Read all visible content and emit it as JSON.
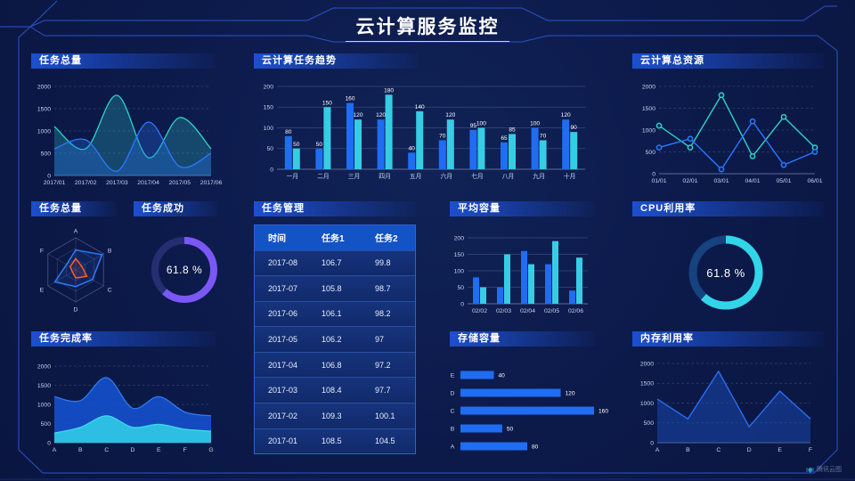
{
  "title": "云计算服务监控",
  "watermark": "腾讯云图",
  "colors": {
    "background": "#0c1a4a",
    "frame_line": "#2c52c9",
    "header_gradient": "#1d4fd0",
    "series_blue": "#1f6df2",
    "series_cyan": "#35cde4",
    "series_teal": "#2dd3c4",
    "donut_purple": "#7b57f6",
    "donut_cyan": "#32d5e7"
  },
  "chart_data": [
    {
      "key": "task-total-trend",
      "type": "area",
      "title": "任务总量",
      "x": [
        "2017/01",
        "2017/02",
        "2017/03",
        "2017/04",
        "2017/05",
        "2017/06"
      ],
      "ylim": [
        0,
        2000
      ],
      "yticks": [
        0,
        500,
        1000,
        1500,
        2000
      ],
      "grid": "dashed",
      "series": [
        {
          "color": "#2dd3c4",
          "fill": "rgba(45,190,200,0.28)",
          "values": [
            1100,
            600,
            1800,
            400,
            1300,
            600
          ]
        },
        {
          "color": "#2979ff",
          "fill": "rgba(41,110,240,0.30)",
          "values": [
            600,
            800,
            100,
            1200,
            200,
            500
          ]
        }
      ]
    },
    {
      "key": "cloud-task-trend",
      "type": "bar",
      "title": "云计算任务趋势",
      "categories": [
        "一月",
        "二月",
        "三月",
        "四月",
        "五月",
        "六月",
        "七月",
        "八月",
        "九月",
        "十月"
      ],
      "ylim": [
        0,
        200
      ],
      "yticks": [
        0,
        50,
        100,
        150,
        200
      ],
      "show_value_labels": true,
      "series": [
        {
          "color": "#1f6df2",
          "values": [
            80,
            50,
            160,
            120,
            40,
            70,
            95,
            65,
            100,
            120
          ]
        },
        {
          "color": "#35cde4",
          "values": [
            50,
            150,
            120,
            180,
            140,
            120,
            100,
            85,
            70,
            90
          ]
        }
      ]
    },
    {
      "key": "cloud-resources",
      "type": "line",
      "title": "云计算总资源",
      "x": [
        "01/01",
        "02/01",
        "03/01",
        "04/01",
        "05/01",
        "06/01"
      ],
      "ylim": [
        0,
        2000
      ],
      "yticks": [
        0,
        500,
        1000,
        1500,
        2000
      ],
      "grid": "dashed",
      "markers": true,
      "series": [
        {
          "color": "#2dd3c4",
          "values": [
            1100,
            600,
            1800,
            400,
            1300,
            600
          ]
        },
        {
          "color": "#2979ff",
          "values": [
            600,
            800,
            100,
            1200,
            200,
            500
          ]
        }
      ]
    },
    {
      "key": "task-total-radar",
      "type": "radar",
      "title": "任务总量",
      "axes": [
        "A",
        "B",
        "C",
        "D",
        "E",
        "F"
      ],
      "series": [
        {
          "color": "#2f7bf5",
          "values_fraction": [
            0.62,
            0.95,
            0.6,
            0.52,
            0.75,
            0.33
          ]
        },
        {
          "color": "#ff5b2e",
          "values_fraction": [
            0.35,
            0.22,
            0.4,
            0.25,
            0.12,
            0.2
          ]
        }
      ]
    },
    {
      "key": "task-success",
      "type": "donut",
      "title": "任务成功",
      "percent": 61.8,
      "label": "61.8 %",
      "color": "#7b57f6",
      "track": "#242e71"
    },
    {
      "key": "task-table",
      "type": "table",
      "title": "任务管理",
      "headers": [
        "时间",
        "任务1",
        "任务2"
      ],
      "rows": [
        [
          "2017-08",
          "106.7",
          "99.8"
        ],
        [
          "2017-07",
          "105.8",
          "98.7"
        ],
        [
          "2017-06",
          "106.1",
          "98.2"
        ],
        [
          "2017-05",
          "106.2",
          "97"
        ],
        [
          "2017-04",
          "106.8",
          "97.2"
        ],
        [
          "2017-03",
          "108.4",
          "97.7"
        ],
        [
          "2017-02",
          "109.3",
          "100.1"
        ],
        [
          "2017-01",
          "108.5",
          "104.5"
        ]
      ]
    },
    {
      "key": "avg-capacity",
      "type": "bar",
      "title": "平均容量",
      "categories": [
        "02/02",
        "02/03",
        "02/04",
        "02/05",
        "02/06"
      ],
      "ylim": [
        0,
        200
      ],
      "yticks": [
        0,
        50,
        100,
        150,
        200
      ],
      "show_value_labels": false,
      "series": [
        {
          "color": "#1f6df2",
          "values": [
            80,
            50,
            160,
            120,
            40
          ]
        },
        {
          "color": "#35cde4",
          "values": [
            50,
            150,
            120,
            190,
            140
          ]
        }
      ]
    },
    {
      "key": "cpu-usage",
      "type": "donut",
      "title": "CPU利用率",
      "percent": 61.8,
      "label": "61.8 %",
      "color": "#32d5e7",
      "track": "#16427f"
    },
    {
      "key": "task-completion",
      "type": "area",
      "title": "任务完成率",
      "x": [
        "A",
        "B",
        "C",
        "D",
        "E",
        "F",
        "G"
      ],
      "ylim": [
        0,
        2000
      ],
      "yticks": [
        0,
        500,
        1000,
        1500,
        2000
      ],
      "grid": "dashed",
      "series": [
        {
          "color": "#2e7bf0",
          "fill": "rgba(21,80,205,0.9)",
          "values": [
            1200,
            1100,
            1700,
            900,
            1200,
            800,
            700
          ]
        },
        {
          "color": "#3fd8ea",
          "fill": "rgba(46,196,230,0.95)",
          "values": [
            250,
            400,
            700,
            400,
            480,
            350,
            300
          ]
        }
      ]
    },
    {
      "key": "storage-capacity",
      "type": "hbar",
      "title": "存储容量",
      "categories": [
        "E",
        "D",
        "C",
        "B",
        "A"
      ],
      "values": [
        40,
        120,
        160,
        50,
        80
      ],
      "color": "#1f6df2",
      "xmax": 160
    },
    {
      "key": "memory-usage",
      "type": "line-area",
      "title": "内存利用率",
      "x": [
        "A",
        "B",
        "C",
        "D",
        "E",
        "F"
      ],
      "ylim": [
        0,
        2000
      ],
      "yticks": [
        0,
        500,
        1000,
        1500,
        2000
      ],
      "grid": "dashed",
      "series": [
        {
          "color": "#2b6df0",
          "fill": "rgba(27,80,195,0.45)",
          "values": [
            1100,
            600,
            1800,
            400,
            1300,
            600
          ]
        }
      ]
    }
  ]
}
